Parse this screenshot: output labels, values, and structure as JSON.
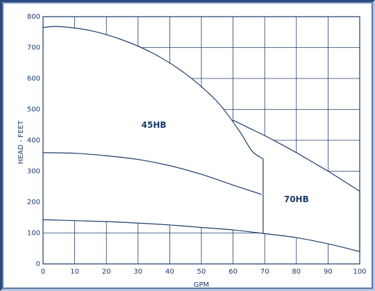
{
  "chart_data": {
    "type": "line",
    "xlabel": "GPM",
    "ylabel": "HEAD - FEET",
    "xlim": [
      0,
      100
    ],
    "ylim": [
      0,
      800
    ],
    "x_ticks": [
      "0",
      "10",
      "20",
      "30",
      "40",
      "50",
      "60",
      "70",
      "80",
      "90",
      "100"
    ],
    "y_ticks": [
      "0",
      "100",
      "200",
      "300",
      "400",
      "500",
      "600",
      "700",
      "800"
    ],
    "grid": true,
    "regions": [
      {
        "label": "45HB",
        "label_at": [
          35,
          440
        ],
        "boundary": [
          {
            "x": [
              0,
              5,
              15,
              25,
              35,
              45,
              55,
              62,
              66,
              69.5
            ],
            "y": [
              765,
              768,
              755,
              725,
              680,
              615,
              525,
              430,
              365,
              340
            ]
          },
          {
            "x": [
              69.5,
              69.5
            ],
            "y": [
              340,
              225
            ]
          },
          {
            "x": [
              0,
              10,
              20,
              30,
              40,
              50,
              60,
              69
            ],
            "y": [
              360,
              358,
              350,
              338,
              318,
              290,
              255,
              225
            ]
          }
        ]
      },
      {
        "label": "70HB",
        "label_at": [
          80,
          200
        ],
        "boundary": [
          {
            "x": [
              60,
              65,
              70,
              75,
              80,
              85,
              90,
              95,
              100
            ],
            "y": [
              465,
              440,
              415,
              388,
              360,
              330,
              300,
              268,
              235
            ]
          },
          {
            "x": [
              100,
              100
            ],
            "y": [
              235,
              40
            ]
          },
          {
            "x": [
              0,
              10,
              20,
              30,
              40,
              50,
              60,
              70,
              80,
              90,
              100
            ],
            "y": [
              143,
              140,
              137,
              132,
              126,
              118,
              110,
              98,
              85,
              65,
              40
            ]
          },
          {
            "x": [
              69.5,
              69.5
            ],
            "y": [
              225,
              100
            ]
          }
        ]
      }
    ]
  }
}
